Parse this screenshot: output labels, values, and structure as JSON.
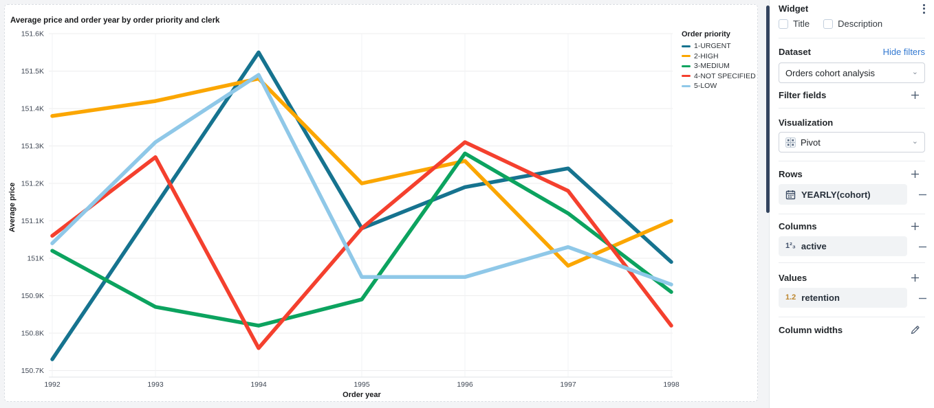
{
  "chart": {
    "title": "Average price and order year by order priority and clerk",
    "chart_data": {
      "type": "line",
      "title": "Average price and order year by order priority and clerk",
      "xlabel": "Order year",
      "ylabel": "Average price",
      "x": [
        1992,
        1993,
        1994,
        1995,
        1996,
        1997,
        1998
      ],
      "ylim": [
        150700,
        151600
      ],
      "ytick_step": 100,
      "ytick_labels": [
        "150.7K",
        "150.8K",
        "150.9K",
        "151K",
        "151.1K",
        "151.2K",
        "151.3K",
        "151.4K",
        "151.5K",
        "151.6K"
      ],
      "grid": true,
      "legend_position": "top-right",
      "legend_title": "Order priority",
      "series": [
        {
          "name": "1-URGENT",
          "color": "#16738f",
          "values": [
            150730,
            151140,
            151550,
            151080,
            151190,
            151240,
            150990
          ]
        },
        {
          "name": "2-HIGH",
          "color": "#fba600",
          "values": [
            151380,
            151420,
            151480,
            151200,
            151260,
            150980,
            151100
          ]
        },
        {
          "name": "3-MEDIUM",
          "color": "#0ca35f",
          "values": [
            151020,
            150870,
            150820,
            150890,
            151280,
            151120,
            150910
          ]
        },
        {
          "name": "4-NOT SPECIFIED",
          "color": "#f4402e",
          "values": [
            151060,
            151270,
            150760,
            151080,
            151310,
            151180,
            150820
          ]
        },
        {
          "name": "5-LOW",
          "color": "#8fc8e8",
          "values": [
            151040,
            151310,
            151490,
            150950,
            150950,
            151030,
            150930
          ]
        }
      ]
    }
  },
  "panel": {
    "widget": {
      "title": "Widget",
      "kebab_icon": "kebab-menu",
      "checkboxes": [
        {
          "label": "Title",
          "checked": false
        },
        {
          "label": "Description",
          "checked": false
        }
      ]
    },
    "dataset": {
      "label": "Dataset",
      "link": "Hide filters",
      "selected": "Orders cohort analysis"
    },
    "filter_fields": {
      "label": "Filter fields"
    },
    "visualization": {
      "label": "Visualization",
      "selected": "Pivot"
    },
    "rows": {
      "label": "Rows",
      "items": [
        {
          "icon": "calendar-icon",
          "label": "YEARLY(cohort)"
        }
      ]
    },
    "columns": {
      "label": "Columns",
      "items": [
        {
          "icon": "integer-icon",
          "icon_text": "1²₃",
          "label": "active"
        }
      ]
    },
    "values": {
      "label": "Values",
      "items": [
        {
          "icon": "decimal-icon",
          "icon_text": "1.2",
          "label": "retention"
        }
      ]
    },
    "column_widths": {
      "label": "Column widths"
    }
  },
  "colors": {
    "link_blue": "#3379d1",
    "scrollbar": "#33445e",
    "pill_bg": "#f1f3f5",
    "icon_slate": "#41506b"
  }
}
